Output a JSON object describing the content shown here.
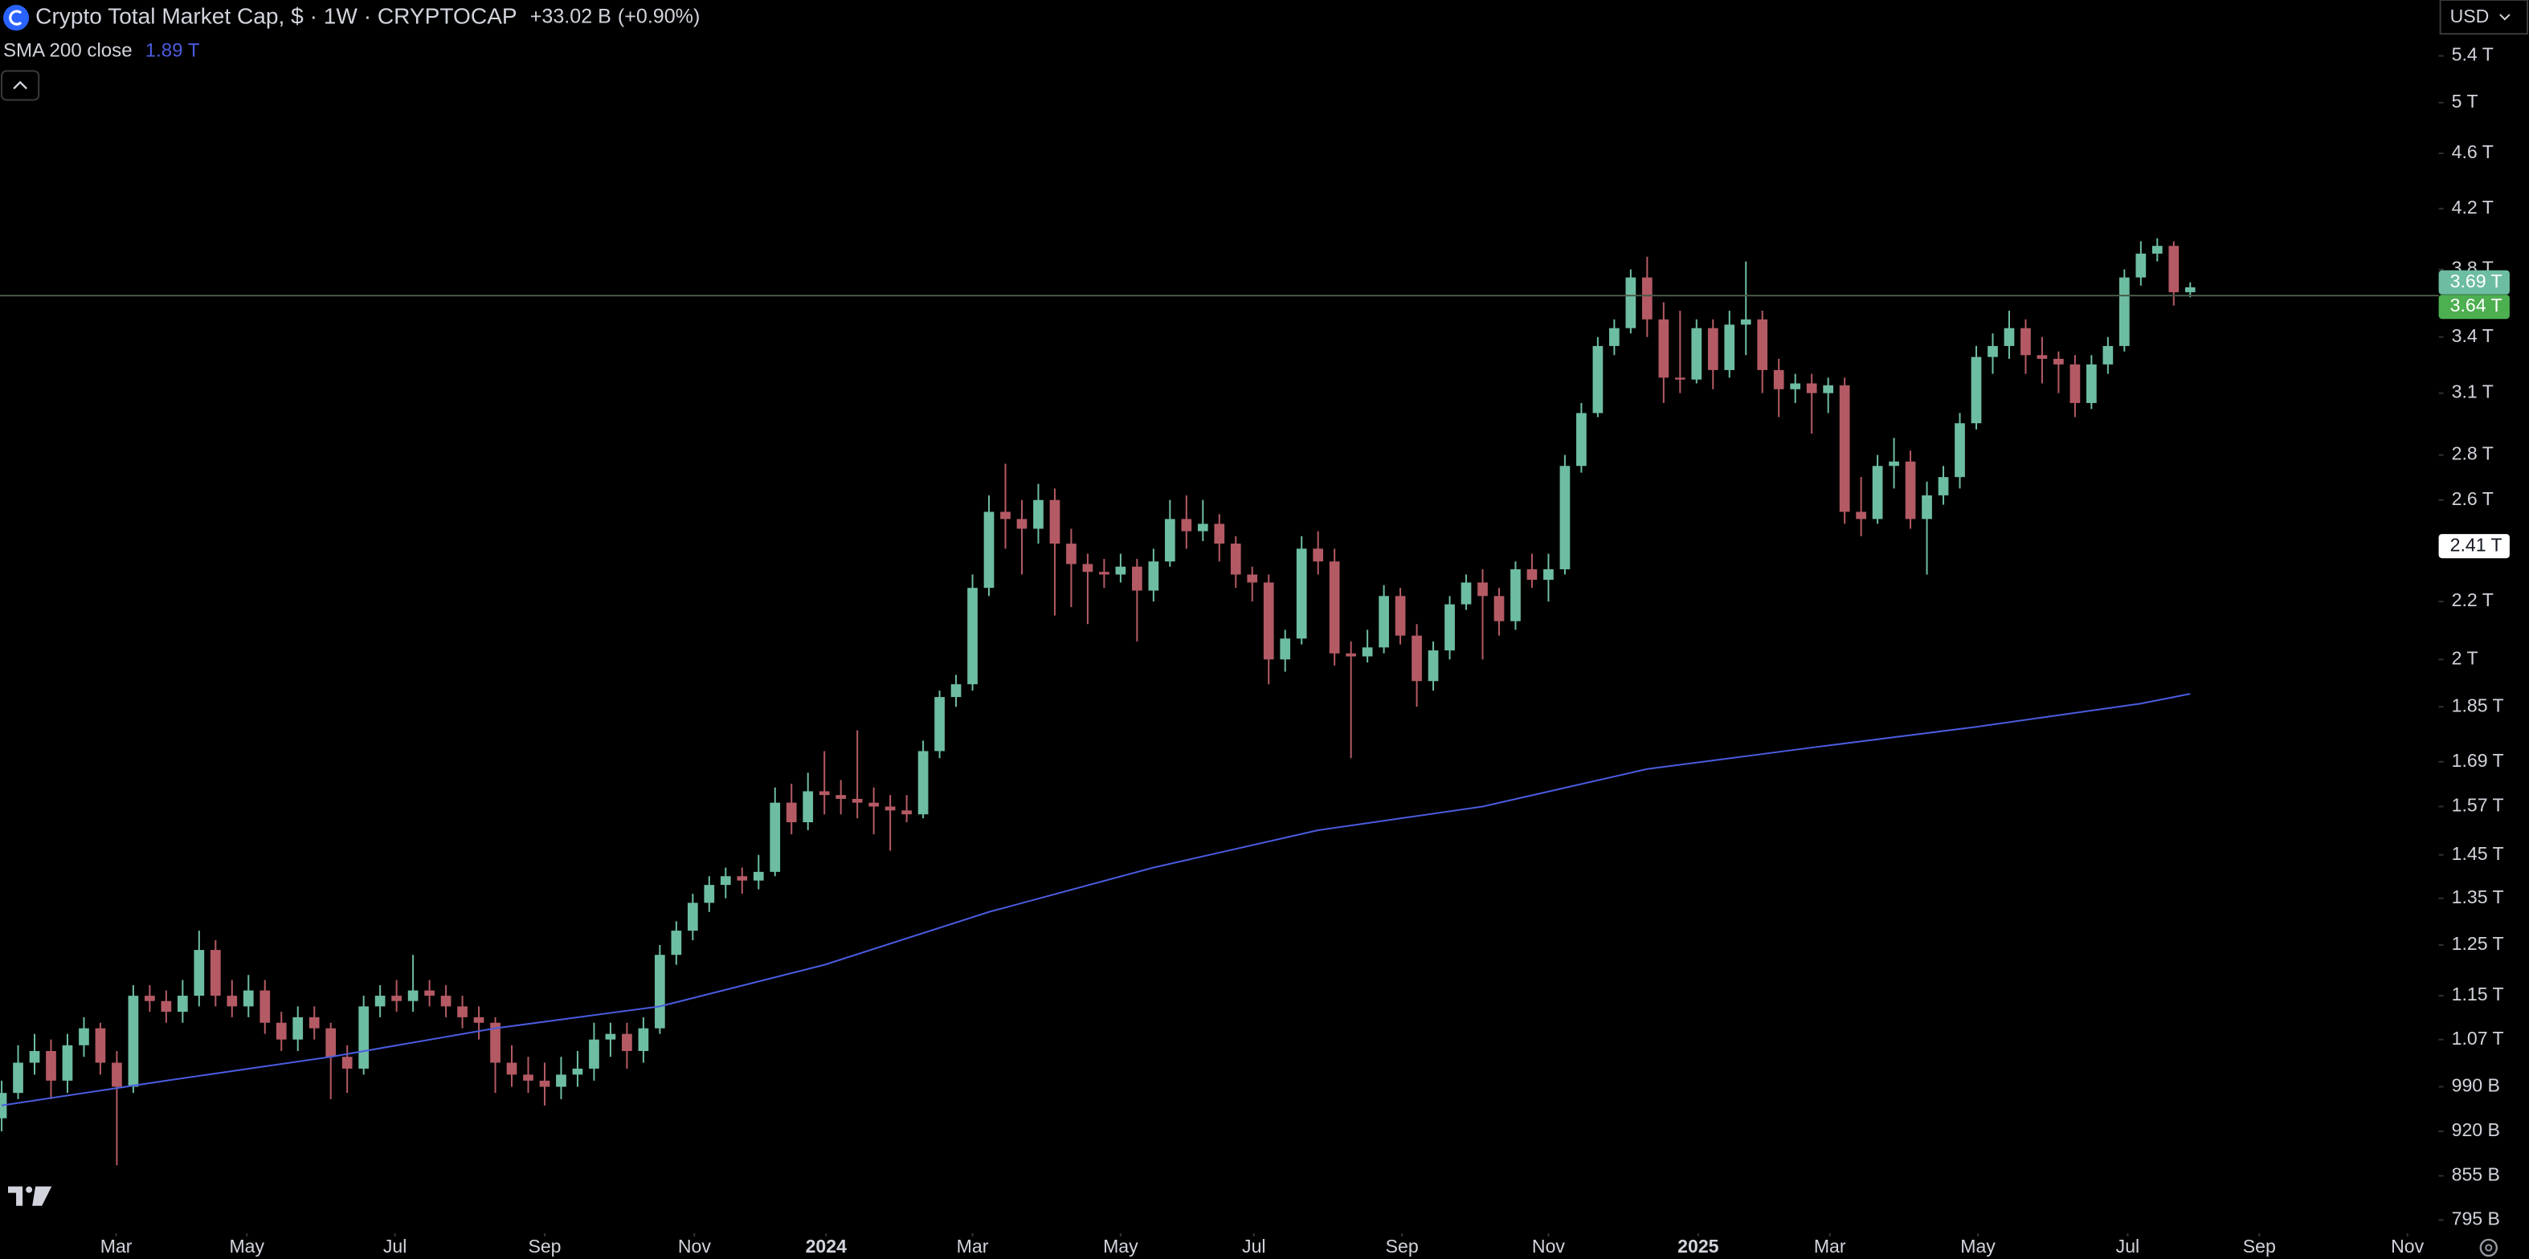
{
  "header": {
    "title": "Crypto Total Market Cap, $ · 1W · CRYPTOCAP",
    "change": "+33.02 B",
    "change_pct": "(+0.90%)",
    "currency": "USD"
  },
  "chart_data": {
    "type": "candlestick",
    "up_color": "#6dbda3",
    "down_color": "#b45a64",
    "log_scale": true,
    "grid": false,
    "candles": [
      [
        0.94,
        1.0,
        0.92,
        0.98
      ],
      [
        0.98,
        1.06,
        0.97,
        1.03
      ],
      [
        1.03,
        1.08,
        1.01,
        1.05
      ],
      [
        1.05,
        1.07,
        0.97,
        1.0
      ],
      [
        1.0,
        1.08,
        0.98,
        1.06
      ],
      [
        1.06,
        1.11,
        1.04,
        1.09
      ],
      [
        1.09,
        1.1,
        1.01,
        1.03
      ],
      [
        1.03,
        1.05,
        0.87,
        0.99
      ],
      [
        0.99,
        1.17,
        0.98,
        1.15
      ],
      [
        1.15,
        1.17,
        1.12,
        1.14
      ],
      [
        1.14,
        1.16,
        1.1,
        1.12
      ],
      [
        1.12,
        1.18,
        1.1,
        1.15
      ],
      [
        1.15,
        1.28,
        1.13,
        1.24
      ],
      [
        1.24,
        1.26,
        1.13,
        1.15
      ],
      [
        1.15,
        1.18,
        1.11,
        1.13
      ],
      [
        1.13,
        1.19,
        1.11,
        1.16
      ],
      [
        1.16,
        1.18,
        1.08,
        1.1
      ],
      [
        1.1,
        1.12,
        1.05,
        1.07
      ],
      [
        1.07,
        1.13,
        1.05,
        1.11
      ],
      [
        1.11,
        1.13,
        1.07,
        1.09
      ],
      [
        1.09,
        1.1,
        0.97,
        1.04
      ],
      [
        1.04,
        1.06,
        0.98,
        1.02
      ],
      [
        1.02,
        1.15,
        1.01,
        1.13
      ],
      [
        1.13,
        1.17,
        1.11,
        1.15
      ],
      [
        1.15,
        1.18,
        1.12,
        1.14
      ],
      [
        1.14,
        1.23,
        1.12,
        1.16
      ],
      [
        1.16,
        1.18,
        1.13,
        1.15
      ],
      [
        1.15,
        1.17,
        1.11,
        1.13
      ],
      [
        1.13,
        1.15,
        1.09,
        1.11
      ],
      [
        1.11,
        1.13,
        1.07,
        1.1
      ],
      [
        1.1,
        1.11,
        0.98,
        1.03
      ],
      [
        1.03,
        1.06,
        0.99,
        1.01
      ],
      [
        1.01,
        1.04,
        0.98,
        1.0
      ],
      [
        1.0,
        1.03,
        0.96,
        0.99
      ],
      [
        0.99,
        1.04,
        0.97,
        1.01
      ],
      [
        1.01,
        1.05,
        0.99,
        1.02
      ],
      [
        1.02,
        1.1,
        1.0,
        1.07
      ],
      [
        1.07,
        1.1,
        1.04,
        1.08
      ],
      [
        1.08,
        1.1,
        1.02,
        1.05
      ],
      [
        1.05,
        1.11,
        1.03,
        1.09
      ],
      [
        1.09,
        1.25,
        1.08,
        1.23
      ],
      [
        1.23,
        1.3,
        1.21,
        1.28
      ],
      [
        1.28,
        1.36,
        1.26,
        1.34
      ],
      [
        1.34,
        1.4,
        1.32,
        1.38
      ],
      [
        1.38,
        1.42,
        1.35,
        1.4
      ],
      [
        1.4,
        1.42,
        1.36,
        1.39
      ],
      [
        1.39,
        1.45,
        1.37,
        1.41
      ],
      [
        1.41,
        1.62,
        1.4,
        1.58
      ],
      [
        1.58,
        1.63,
        1.5,
        1.53
      ],
      [
        1.53,
        1.66,
        1.51,
        1.61
      ],
      [
        1.61,
        1.72,
        1.55,
        1.6
      ],
      [
        1.6,
        1.64,
        1.55,
        1.59
      ],
      [
        1.59,
        1.78,
        1.54,
        1.58
      ],
      [
        1.58,
        1.62,
        1.5,
        1.57
      ],
      [
        1.57,
        1.6,
        1.46,
        1.56
      ],
      [
        1.56,
        1.6,
        1.53,
        1.55
      ],
      [
        1.55,
        1.75,
        1.54,
        1.72
      ],
      [
        1.72,
        1.9,
        1.7,
        1.88
      ],
      [
        1.88,
        1.95,
        1.85,
        1.92
      ],
      [
        1.92,
        2.3,
        1.9,
        2.25
      ],
      [
        2.25,
        2.62,
        2.22,
        2.55
      ],
      [
        2.55,
        2.76,
        2.4,
        2.52
      ],
      [
        2.52,
        2.6,
        2.3,
        2.48
      ],
      [
        2.48,
        2.67,
        2.42,
        2.6
      ],
      [
        2.6,
        2.65,
        2.15,
        2.42
      ],
      [
        2.42,
        2.48,
        2.18,
        2.34
      ],
      [
        2.34,
        2.38,
        2.12,
        2.31
      ],
      [
        2.31,
        2.36,
        2.25,
        2.3
      ],
      [
        2.3,
        2.38,
        2.27,
        2.33
      ],
      [
        2.33,
        2.36,
        2.06,
        2.24
      ],
      [
        2.24,
        2.4,
        2.2,
        2.35
      ],
      [
        2.35,
        2.6,
        2.33,
        2.52
      ],
      [
        2.52,
        2.62,
        2.4,
        2.47
      ],
      [
        2.47,
        2.6,
        2.43,
        2.5
      ],
      [
        2.5,
        2.54,
        2.35,
        2.42
      ],
      [
        2.42,
        2.45,
        2.25,
        2.3
      ],
      [
        2.3,
        2.33,
        2.2,
        2.27
      ],
      [
        2.27,
        2.3,
        1.92,
        2.0
      ],
      [
        2.0,
        2.1,
        1.96,
        2.07
      ],
      [
        2.07,
        2.45,
        2.05,
        2.4
      ],
      [
        2.4,
        2.47,
        2.3,
        2.35
      ],
      [
        2.35,
        2.4,
        1.98,
        2.02
      ],
      [
        2.02,
        2.06,
        1.7,
        2.01
      ],
      [
        2.01,
        2.1,
        1.99,
        2.04
      ],
      [
        2.04,
        2.26,
        2.02,
        2.22
      ],
      [
        2.22,
        2.25,
        2.05,
        2.08
      ],
      [
        2.08,
        2.12,
        1.85,
        1.93
      ],
      [
        1.93,
        2.06,
        1.9,
        2.03
      ],
      [
        2.03,
        2.22,
        2.0,
        2.19
      ],
      [
        2.19,
        2.3,
        2.17,
        2.27
      ],
      [
        2.27,
        2.32,
        2.0,
        2.22
      ],
      [
        2.22,
        2.25,
        2.08,
        2.13
      ],
      [
        2.13,
        2.35,
        2.1,
        2.32
      ],
      [
        2.32,
        2.38,
        2.25,
        2.28
      ],
      [
        2.28,
        2.38,
        2.2,
        2.32
      ],
      [
        2.32,
        2.8,
        2.3,
        2.75
      ],
      [
        2.75,
        3.05,
        2.72,
        3.0
      ],
      [
        3.0,
        3.4,
        2.98,
        3.35
      ],
      [
        3.35,
        3.5,
        3.3,
        3.45
      ],
      [
        3.45,
        3.8,
        3.42,
        3.75
      ],
      [
        3.75,
        3.88,
        3.4,
        3.5
      ],
      [
        3.5,
        3.6,
        3.05,
        3.18
      ],
      [
        3.18,
        3.55,
        3.1,
        3.17
      ],
      [
        3.17,
        3.5,
        3.15,
        3.45
      ],
      [
        3.45,
        3.5,
        3.12,
        3.22
      ],
      [
        3.22,
        3.55,
        3.18,
        3.47
      ],
      [
        3.47,
        3.85,
        3.3,
        3.5
      ],
      [
        3.5,
        3.55,
        3.1,
        3.22
      ],
      [
        3.22,
        3.28,
        2.98,
        3.12
      ],
      [
        3.12,
        3.2,
        3.05,
        3.15
      ],
      [
        3.15,
        3.2,
        2.9,
        3.1
      ],
      [
        3.1,
        3.18,
        3.0,
        3.14
      ],
      [
        3.14,
        3.18,
        2.5,
        2.55
      ],
      [
        2.55,
        2.7,
        2.45,
        2.52
      ],
      [
        2.52,
        2.8,
        2.5,
        2.75
      ],
      [
        2.75,
        2.88,
        2.65,
        2.77
      ],
      [
        2.77,
        2.82,
        2.48,
        2.52
      ],
      [
        2.52,
        2.68,
        2.3,
        2.62
      ],
      [
        2.62,
        2.75,
        2.58,
        2.7
      ],
      [
        2.7,
        3.0,
        2.65,
        2.95
      ],
      [
        2.95,
        3.35,
        2.92,
        3.29
      ],
      [
        3.29,
        3.42,
        3.2,
        3.35
      ],
      [
        3.35,
        3.55,
        3.28,
        3.45
      ],
      [
        3.45,
        3.5,
        3.2,
        3.3
      ],
      [
        3.3,
        3.4,
        3.15,
        3.28
      ],
      [
        3.28,
        3.32,
        3.1,
        3.25
      ],
      [
        3.25,
        3.3,
        2.98,
        3.05
      ],
      [
        3.05,
        3.3,
        3.02,
        3.25
      ],
      [
        3.25,
        3.4,
        3.2,
        3.35
      ],
      [
        3.35,
        3.8,
        3.32,
        3.75
      ],
      [
        3.75,
        3.98,
        3.7,
        3.9
      ],
      [
        3.9,
        4.0,
        3.85,
        3.95
      ],
      [
        3.95,
        3.98,
        3.58,
        3.66
      ],
      [
        3.66,
        3.72,
        3.63,
        3.69
      ]
    ],
    "series": [
      {
        "name": "SMA 200 close",
        "last_label": "1.89 T",
        "color": "#4a5ce0",
        "x": [
          0,
          10,
          20,
          30,
          40,
          50,
          60,
          70,
          80,
          90,
          100,
          110,
          120,
          130,
          133
        ],
        "values": [
          0.96,
          1.0,
          1.04,
          1.09,
          1.13,
          1.21,
          1.32,
          1.42,
          1.51,
          1.57,
          1.67,
          1.73,
          1.79,
          1.86,
          1.89
        ]
      }
    ],
    "xlim": [
      -0.1,
      148.1
    ],
    "xticks": [
      {
        "value": 6.96,
        "label": "Mar"
      },
      {
        "value": 14.9,
        "label": "May"
      },
      {
        "value": 23.9,
        "label": "Jul"
      },
      {
        "value": 33.0,
        "label": "Sep"
      },
      {
        "value": 42.1,
        "label": "Nov"
      },
      {
        "value": 50.1,
        "label": "2024"
      },
      {
        "value": 59.0,
        "label": "Mar"
      },
      {
        "value": 68.0,
        "label": "May"
      },
      {
        "value": 76.1,
        "label": "Jul"
      },
      {
        "value": 85.1,
        "label": "Sep"
      },
      {
        "value": 94.0,
        "label": "Nov"
      },
      {
        "value": 103.1,
        "label": "2025"
      },
      {
        "value": 111.1,
        "label": "Mar"
      },
      {
        "value": 120.1,
        "label": "May"
      },
      {
        "value": 129.2,
        "label": "Jul"
      },
      {
        "value": 137.2,
        "label": "Sep"
      },
      {
        "value": 146.2,
        "label": "Nov"
      }
    ],
    "ylim": [
      0.778,
      5.92
    ],
    "yticks": [
      {
        "value": 5.4,
        "label": "5.4 T"
      },
      {
        "value": 5,
        "label": "5 T"
      },
      {
        "value": 4.6,
        "label": "4.6 T"
      },
      {
        "value": 4.2,
        "label": "4.2 T"
      },
      {
        "value": 3.8,
        "label": "3.8 T"
      },
      {
        "value": 3.4,
        "label": "3.4 T"
      },
      {
        "value": 3.1,
        "label": "3.1 T"
      },
      {
        "value": 2.8,
        "label": "2.8 T"
      },
      {
        "value": 2.6,
        "label": "2.6 T"
      },
      {
        "value": 2.2,
        "label": "2.2 T"
      },
      {
        "value": 2,
        "label": "2 T"
      },
      {
        "value": 1.85,
        "label": "1.85 T"
      },
      {
        "value": 1.69,
        "label": "1.69 T"
      },
      {
        "value": 1.57,
        "label": "1.57 T"
      },
      {
        "value": 1.45,
        "label": "1.45 T"
      },
      {
        "value": 1.35,
        "label": "1.35 T"
      },
      {
        "value": 1.25,
        "label": "1.25 T"
      },
      {
        "value": 1.15,
        "label": "1.15 T"
      },
      {
        "value": 1.07,
        "label": "1.07 T"
      },
      {
        "value": 0.99,
        "label": "990 B"
      },
      {
        "value": 0.92,
        "label": "920 B"
      },
      {
        "value": 0.855,
        "label": "855 B"
      },
      {
        "value": 0.795,
        "label": "795 B"
      }
    ],
    "price_labels": [
      {
        "value": 3.69,
        "label": "3.69 T",
        "color": "#6dbda3"
      },
      {
        "value": 3.64,
        "label": "3.64 T",
        "color": "#4caf50"
      },
      {
        "value": 2.41,
        "label": "2.41 T",
        "color": "#ffffff"
      }
    ]
  }
}
